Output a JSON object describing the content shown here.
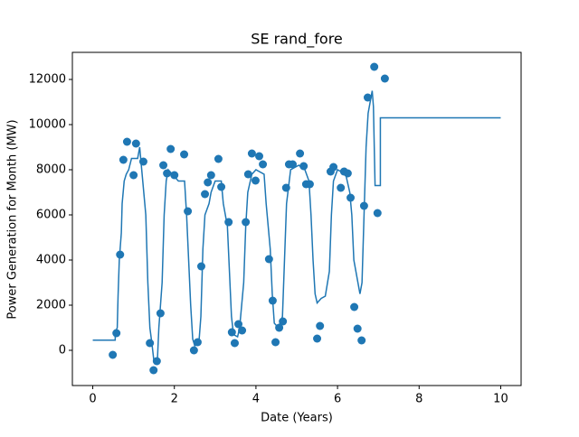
{
  "chart_data": {
    "type": "scatter",
    "title": "SE rand_fore",
    "xlabel": "Date (Years)",
    "ylabel": "Power Generation for Month (MW)",
    "xlim": [
      -0.5,
      10.5
    ],
    "ylim": [
      -1560,
      13200
    ],
    "xticks": [
      0,
      2,
      4,
      6,
      8,
      10
    ],
    "yticks": [
      0,
      2000,
      4000,
      6000,
      8000,
      10000,
      12000
    ],
    "series": [
      {
        "type": "line",
        "color": "#1f77b4",
        "x": [
          0,
          0.55,
          0.55,
          0.6,
          0.62,
          0.65,
          0.7,
          0.72,
          0.77,
          0.82,
          0.88,
          0.95,
          1.1,
          1.15,
          1.2,
          1.3,
          1.35,
          1.4,
          1.45,
          1.5,
          1.58,
          1.62,
          1.7,
          1.75,
          1.8,
          1.85,
          2.0,
          2.1,
          2.25,
          2.3,
          2.35,
          2.4,
          2.45,
          2.5,
          2.6,
          2.65,
          2.7,
          2.75,
          2.85,
          2.9,
          3.0,
          3.15,
          3.2,
          3.3,
          3.35,
          3.4,
          3.45,
          3.55,
          3.6,
          3.7,
          3.75,
          3.8,
          3.9,
          4.0,
          4.2,
          4.25,
          4.35,
          4.4,
          4.45,
          4.55,
          4.65,
          4.7,
          4.75,
          4.85,
          5.05,
          5.2,
          5.3,
          5.35,
          5.4,
          5.45,
          5.5,
          5.6,
          5.7,
          5.8,
          5.85,
          5.9,
          6.0,
          6.2,
          6.3,
          6.35,
          6.4,
          6.5,
          6.55,
          6.6,
          6.65,
          6.7,
          6.75,
          6.8,
          6.85,
          6.88,
          6.92,
          7.05,
          7.05,
          10.0
        ],
        "values": [
          450,
          450,
          800,
          1000,
          2400,
          4000,
          5200,
          6500,
          7500,
          7800,
          8000,
          8500,
          8500,
          9000,
          8000,
          6000,
          3000,
          1000,
          300,
          -500,
          -600,
          1000,
          3000,
          6000,
          7500,
          8000,
          7700,
          7500,
          7500,
          6000,
          4000,
          2000,
          500,
          200,
          300,
          1500,
          4500,
          6000,
          6500,
          7000,
          7500,
          7500,
          6500,
          5500,
          3500,
          1500,
          700,
          600,
          1000,
          3000,
          5500,
          7000,
          7800,
          8000,
          7800,
          6500,
          4500,
          2500,
          1200,
          1000,
          1500,
          4000,
          6500,
          8000,
          8200,
          8000,
          7500,
          6000,
          4000,
          2500,
          2100,
          2300,
          2400,
          3500,
          6000,
          7500,
          8000,
          7800,
          7000,
          6000,
          4000,
          3000,
          2500,
          3000,
          6000,
          9000,
          10500,
          11000,
          11500,
          10800,
          7300,
          7300,
          10300,
          10300
        ]
      },
      {
        "type": "scatter",
        "color": "#1f77b4",
        "x": [
          0.49,
          0.58,
          0.67,
          0.75,
          0.84,
          1.0,
          1.06,
          1.24,
          1.4,
          1.49,
          1.57,
          1.66,
          1.73,
          1.82,
          1.91,
          2.0,
          2.24,
          2.33,
          2.48,
          2.57,
          2.66,
          2.75,
          2.82,
          2.9,
          3.08,
          3.15,
          3.33,
          3.41,
          3.48,
          3.57,
          3.66,
          3.75,
          3.81,
          3.9,
          3.99,
          4.08,
          4.17,
          4.32,
          4.41,
          4.48,
          4.57,
          4.66,
          4.74,
          4.81,
          4.9,
          5.08,
          5.17,
          5.23,
          5.32,
          5.5,
          5.57,
          5.83,
          5.9,
          6.08,
          6.16,
          6.25,
          6.32,
          6.41,
          6.49,
          6.59,
          6.65,
          6.74,
          6.9,
          6.98,
          7.16
        ],
        "values": [
          -200,
          760,
          4240,
          8440,
          9240,
          7760,
          9160,
          8360,
          320,
          -880,
          -480,
          1640,
          8200,
          7840,
          8920,
          7760,
          8680,
          6160,
          0,
          360,
          3720,
          6920,
          7440,
          7760,
          8480,
          7240,
          5680,
          800,
          320,
          1160,
          880,
          5680,
          7800,
          8720,
          7520,
          8600,
          8240,
          4040,
          2200,
          360,
          1000,
          1280,
          7200,
          8240,
          8240,
          8720,
          8160,
          7360,
          7360,
          520,
          1080,
          7920,
          8120,
          7200,
          7920,
          7840,
          6760,
          1920,
          960,
          440,
          6400,
          11200,
          12560,
          6080,
          12040
        ]
      }
    ]
  }
}
